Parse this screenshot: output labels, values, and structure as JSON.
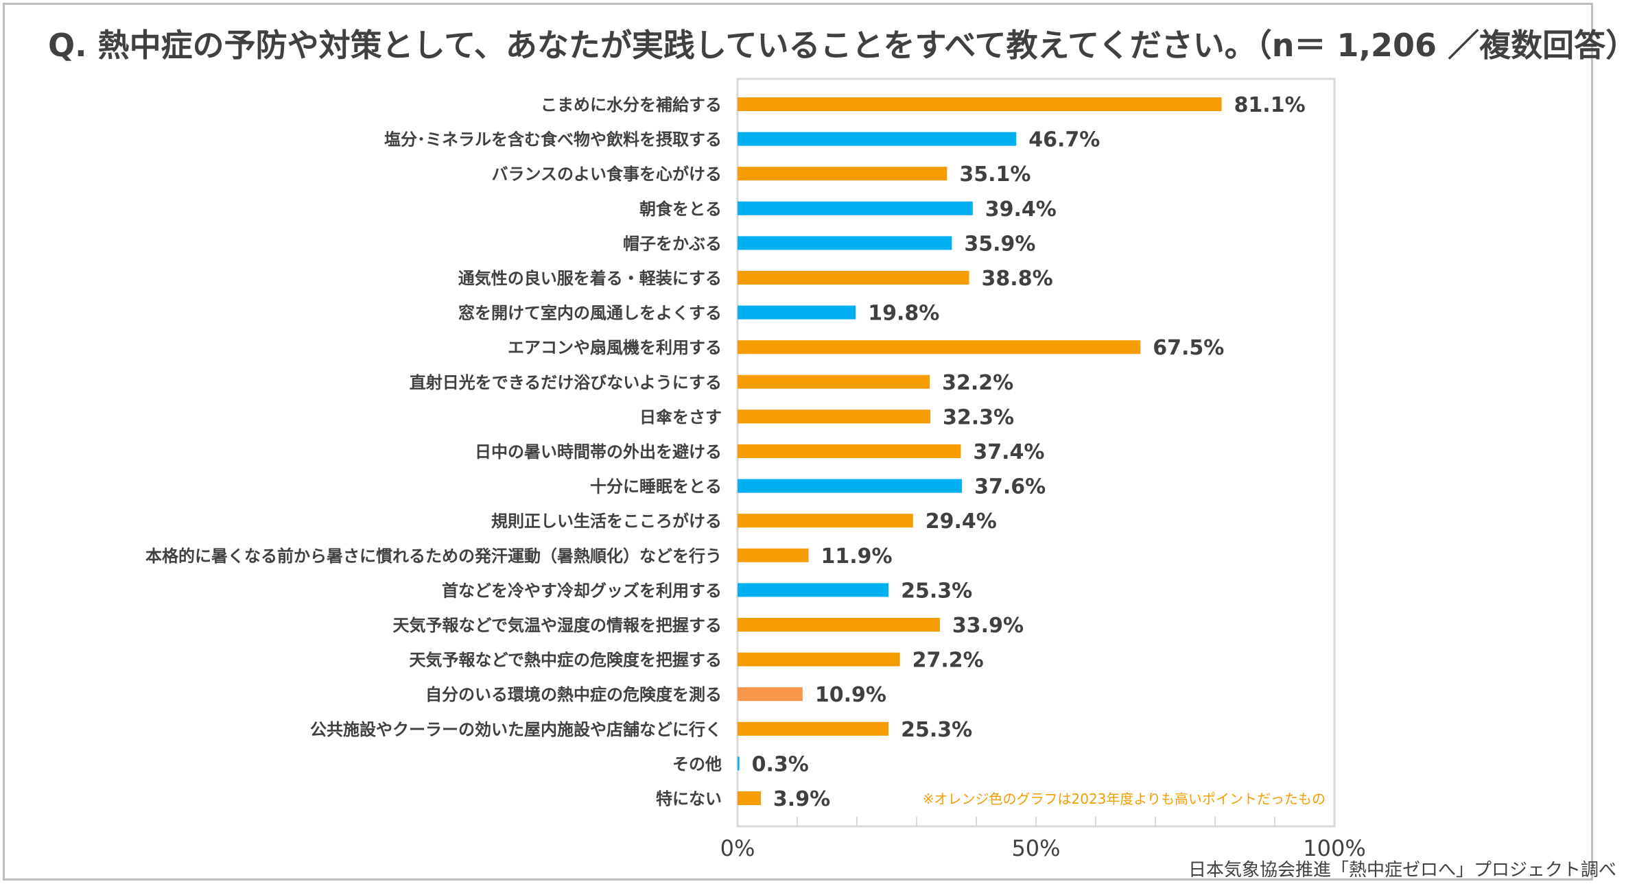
{
  "title": "Q. 熱中症の予防や対策として、あなたが実践していることをすべて教えてください。（n＝ 1,206 ／複数回答）",
  "source": "日本気象協会推進「熱中症ゼロへ」プロジェクト調べ",
  "note": "※オレンジ色のグラフは2023年度よりも高いポイントだったもの",
  "colors": {
    "higher": "#f59c00",
    "higher_light": "#f7964a",
    "other": "#00b0f0"
  },
  "chart_data": {
    "type": "bar",
    "orientation": "horizontal",
    "xlim": [
      0,
      100
    ],
    "ticks": [
      "0%",
      "50%",
      "100%"
    ],
    "categories": [
      "こまめに水分を補給する",
      "塩分･ミネラルを含む食べ物や飲料を摂取する",
      "バランスのよい食事を心がける",
      "朝食をとる",
      "帽子をかぶる",
      "通気性の良い服を着る・軽装にする",
      "窓を開けて室内の風通しをよくする",
      "エアコンや扇風機を利用する",
      "直射日光をできるだけ浴びないようにする",
      "日傘をさす",
      "日中の暑い時間帯の外出を避ける",
      "十分に睡眠をとる",
      "規則正しい生活をこころがける",
      "本格的に暑くなる前から暑さに慣れるための発汗運動（暑熱順化）などを行う",
      "首などを冷やす冷却グッズを利用する",
      "天気予報などで気温や湿度の情報を把握する",
      "天気予報などで熱中症の危険度を把握する",
      "自分のいる環境の熱中症の危険度を測る",
      "公共施設やクーラーの効いた屋内施設や店舗などに行く",
      "その他",
      "特にない"
    ],
    "values": [
      81.1,
      46.7,
      35.1,
      39.4,
      35.9,
      38.8,
      19.8,
      67.5,
      32.2,
      32.3,
      37.4,
      37.6,
      29.4,
      11.9,
      25.3,
      33.9,
      27.2,
      10.9,
      25.3,
      0.3,
      3.9
    ],
    "value_labels": [
      "81.1%",
      "46.7%",
      "35.1%",
      "39.4%",
      "35.9%",
      "38.8%",
      "19.8%",
      "67.5%",
      "32.2%",
      "32.3%",
      "37.4%",
      "37.6%",
      "29.4%",
      "11.9%",
      "25.3%",
      "33.9%",
      "27.2%",
      "10.9%",
      "25.3%",
      "0.3%",
      "3.9%"
    ],
    "bar_colors": [
      "higher",
      "other",
      "higher",
      "other",
      "other",
      "higher",
      "other",
      "higher",
      "higher",
      "higher",
      "higher",
      "other",
      "higher",
      "higher",
      "other",
      "higher",
      "higher",
      "higher_light",
      "higher",
      "other",
      "higher"
    ]
  }
}
